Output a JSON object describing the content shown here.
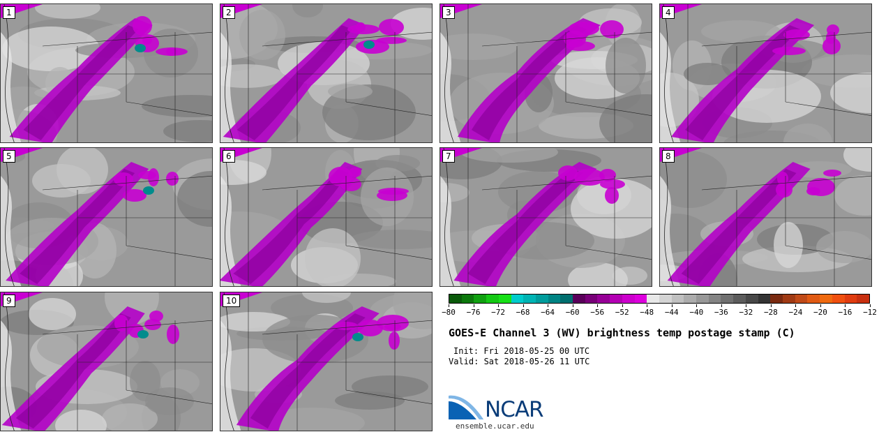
{
  "panels": [
    {
      "label": "1"
    },
    {
      "label": "2"
    },
    {
      "label": "3"
    },
    {
      "label": "4"
    },
    {
      "label": "5"
    },
    {
      "label": "6"
    },
    {
      "label": "7"
    },
    {
      "label": "8"
    },
    {
      "label": "9"
    },
    {
      "label": "10"
    }
  ],
  "colorbar": {
    "ticks": [
      "−80",
      "−76",
      "−72",
      "−68",
      "−64",
      "−60",
      "−56",
      "−52",
      "−48",
      "−44",
      "−40",
      "−36",
      "−32",
      "−28",
      "−24",
      "−20",
      "−16",
      "−12"
    ],
    "colors": [
      "#0a5a0a",
      "#0c780c",
      "#10a010",
      "#14c814",
      "#18e018",
      "#00cccc",
      "#00b4b4",
      "#009c9c",
      "#008484",
      "#006e6e",
      "#5a005a",
      "#780078",
      "#960096",
      "#b400b4",
      "#cc00cc",
      "#dd00dd",
      "#e8e8e8",
      "#d4d4d4",
      "#c0c0c0",
      "#acacac",
      "#989898",
      "#848484",
      "#707070",
      "#5c5c5c",
      "#484848",
      "#343434",
      "#7a2a10",
      "#a03a14",
      "#c04a18",
      "#e05a14",
      "#f06a10",
      "#f05010",
      "#e03c10",
      "#c83010"
    ]
  },
  "title": "GOES-E Channel 3 (WV) brightness temp postage stamp (C)",
  "init": "Init: Fri 2018-05-25 00 UTC",
  "valid": "Valid: Sat 2018-05-26 11 UTC",
  "logo": {
    "text": "NCAR",
    "site": "ensemble.ucar.edu"
  }
}
